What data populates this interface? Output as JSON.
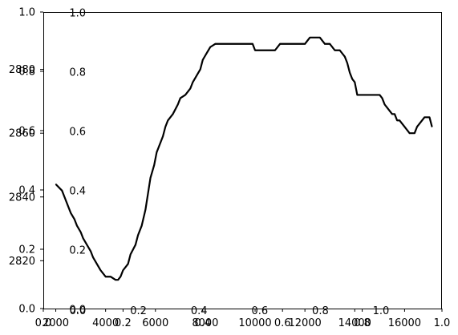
{
  "chart_data": [
    {
      "type": "line",
      "layer": "data",
      "xlim": [
        1500,
        17500
      ],
      "ylim": [
        2805,
        2898
      ],
      "x_ticks": [
        2000,
        4000,
        6000,
        8000,
        10000,
        12000,
        14000,
        16000
      ],
      "x_tick_labels": [
        "2000",
        "4000",
        "6000",
        "8000",
        "10000",
        "12000",
        "14000",
        "16000"
      ],
      "y_ticks": [
        2820,
        2840,
        2860,
        2880
      ],
      "y_tick_labels": [
        "2820",
        "2840",
        "2860",
        "2880"
      ],
      "grid": false,
      "series": [
        {
          "color": "#000000",
          "x": [
            2000,
            2250,
            2350,
            2500,
            2600,
            2750,
            2850,
            3000,
            3100,
            3250,
            3400,
            3500,
            3650,
            3800,
            4000,
            4200,
            4400,
            4500,
            4600,
            4700,
            4800,
            4900,
            5000,
            5200,
            5300,
            5450,
            5600,
            5700,
            5800,
            5950,
            6050,
            6200,
            6300,
            6400,
            6500,
            6700,
            6900,
            7000,
            7200,
            7400,
            7500,
            7650,
            7800,
            7900,
            8050,
            8200,
            8400,
            8700,
            9000,
            9300,
            9500,
            9700,
            9800,
            9900,
            10000,
            10300,
            10600,
            10800,
            11000,
            11300,
            11600,
            11800,
            12000,
            12200,
            12400,
            12600,
            12800,
            13000,
            13200,
            13400,
            13600,
            13700,
            13800,
            13900,
            14000,
            14100,
            14200,
            14300,
            14500,
            14800,
            15000,
            15100,
            15200,
            15300,
            15500,
            15600,
            15700,
            15800,
            16000,
            16200,
            16300,
            16400,
            16500,
            16700,
            16800,
            17000,
            17100
          ],
          "y": [
            2844,
            2842,
            2840,
            2837,
            2835,
            2833,
            2831,
            2829,
            2827,
            2825,
            2823,
            2821,
            2819,
            2817,
            2815,
            2815,
            2814,
            2814,
            2815,
            2817,
            2818,
            2819,
            2822,
            2825,
            2828,
            2831,
            2836,
            2841,
            2846,
            2850,
            2854,
            2857,
            2859,
            2862,
            2864,
            2866,
            2869,
            2871,
            2872,
            2874,
            2876,
            2878,
            2880,
            2883,
            2885,
            2887,
            2888,
            2888,
            2888,
            2888,
            2888,
            2888,
            2888,
            2888,
            2886,
            2886,
            2886,
            2886,
            2888,
            2888,
            2888,
            2888,
            2888,
            2890,
            2890,
            2890,
            2888,
            2888,
            2886,
            2886,
            2884,
            2882,
            2879,
            2877,
            2876,
            2872,
            2872,
            2872,
            2872,
            2872,
            2872,
            2871,
            2869,
            2868,
            2866,
            2866,
            2864,
            2864,
            2862,
            2860,
            2860,
            2860,
            2862,
            2864,
            2865,
            2865,
            2862
          ]
        }
      ]
    },
    {
      "type": "line",
      "layer": "overlay",
      "xlim": [
        0,
        1
      ],
      "ylim": [
        0,
        1
      ],
      "x_ticks": [
        0.0,
        0.2,
        0.4,
        0.6,
        0.8,
        1.0
      ],
      "x_tick_labels": [
        "0.0",
        "0.2",
        "0.4",
        "0.6",
        "0.8",
        "1.0"
      ],
      "y_ticks": [
        0.0,
        0.2,
        0.4,
        0.6,
        0.8,
        1.0
      ],
      "y_tick_labels": [
        "0.0",
        "0.2",
        "0.4",
        "0.6",
        "0.8",
        "1.0"
      ],
      "series": []
    },
    {
      "type": "line",
      "layer": "inset",
      "xlim": [
        0,
        1
      ],
      "ylim": [
        0,
        1
      ],
      "x_ticks": [
        0.0,
        0.2,
        0.4,
        0.6,
        0.8,
        1.0
      ],
      "x_tick_labels": [
        "0.0",
        "0.2",
        "0.4",
        "0.6",
        "0.8",
        "1.0"
      ],
      "y_ticks": [
        0.0,
        0.2,
        0.4,
        0.6,
        0.8,
        1.0
      ],
      "y_tick_labels": [
        "0.0",
        "0.2",
        "0.4",
        "0.6",
        "0.8",
        "1.0"
      ],
      "series": []
    }
  ]
}
